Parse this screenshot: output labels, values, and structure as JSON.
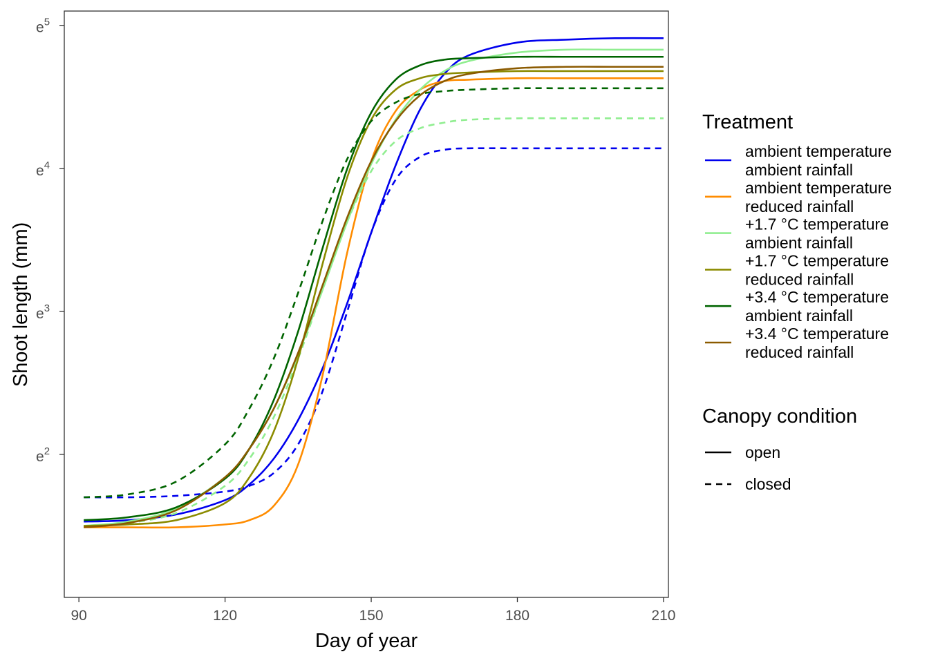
{
  "chart_data": {
    "type": "line",
    "title": "",
    "xlabel": "Day of year",
    "ylabel": "Shoot length (mm)",
    "xlim": [
      87,
      211
    ],
    "x_ticks": [
      90,
      120,
      150,
      180,
      210
    ],
    "x_tick_labels": [
      "90",
      "120",
      "150",
      "180",
      "210"
    ],
    "y_scale": "log",
    "ylim": [
      1.0,
      5.1
    ],
    "y_ticks": [
      2,
      3,
      4,
      5
    ],
    "y_tick_labels": [
      {
        "base": "e",
        "exp": "2"
      },
      {
        "base": "e",
        "exp": "3"
      },
      {
        "base": "e",
        "exp": "4"
      },
      {
        "base": "e",
        "exp": "5"
      }
    ],
    "grid": false,
    "legend_position": "right",
    "legend": {
      "treatment_title": "Treatment",
      "treatment_entries": [
        {
          "line1": "ambient temperature",
          "line2": "ambient rainfall",
          "color": "#0000EE"
        },
        {
          "line1": "ambient temperature",
          "line2": "reduced rainfall",
          "color": "#FF8C00"
        },
        {
          "line1": "+1.7 °C temperature",
          "line2": "ambient rainfall",
          "color": "#90EE90"
        },
        {
          "line1": "+1.7 °C temperature",
          "line2": "reduced rainfall",
          "color": "#8B8B00"
        },
        {
          "line1": "+3.4 °C temperature",
          "line2": "ambient rainfall",
          "color": "#006400"
        },
        {
          "line1": "+3.4 °C temperature",
          "line2": "reduced rainfall",
          "color": "#8B5A00"
        }
      ],
      "canopy_title": "Canopy condition",
      "canopy_entries": [
        {
          "label": "open",
          "dash": "solid"
        },
        {
          "label": "closed",
          "dash": "dashed"
        }
      ]
    },
    "series": [
      {
        "treatment": "ambient temperature / ambient rainfall",
        "canopy": "open",
        "color": "#0000EE",
        "dash": "solid",
        "x": [
          91,
          100,
          110,
          120,
          125,
          130,
          135,
          140,
          145,
          150,
          155,
          160,
          165,
          170,
          180,
          190,
          200,
          210
        ],
        "y": [
          1.53,
          1.54,
          1.58,
          1.68,
          1.79,
          1.97,
          2.24,
          2.6,
          3.05,
          3.55,
          4.02,
          4.41,
          4.66,
          4.79,
          4.88,
          4.9,
          4.91,
          4.91
        ]
      },
      {
        "treatment": "ambient temperature / ambient rainfall",
        "canopy": "closed",
        "color": "#0000EE",
        "dash": "dashed",
        "x": [
          91,
          100,
          110,
          120,
          125,
          130,
          135,
          140,
          145,
          150,
          155,
          160,
          165,
          170,
          180,
          190,
          200,
          210
        ],
        "y": [
          1.7,
          1.7,
          1.71,
          1.74,
          1.78,
          1.87,
          2.07,
          2.44,
          2.99,
          3.55,
          3.92,
          4.08,
          4.13,
          4.14,
          4.14,
          4.14,
          4.14,
          4.14
        ]
      },
      {
        "treatment": "ambient temperature / reduced rainfall",
        "canopy": "open",
        "color": "#FF8C00",
        "dash": "solid",
        "x": [
          91,
          100,
          110,
          120,
          125,
          130,
          135,
          140,
          145,
          150,
          155,
          160,
          165,
          170,
          180,
          190,
          200,
          210
        ],
        "y": [
          1.49,
          1.49,
          1.49,
          1.51,
          1.54,
          1.64,
          1.93,
          2.55,
          3.4,
          4.05,
          4.4,
          4.55,
          4.61,
          4.62,
          4.63,
          4.63,
          4.63,
          4.63
        ]
      },
      {
        "treatment": "+1.7 °C temperature / ambient rainfall",
        "canopy": "open",
        "color": "#90EE90",
        "dash": "solid",
        "x": [
          91,
          100,
          110,
          120,
          125,
          130,
          135,
          140,
          145,
          150,
          155,
          160,
          165,
          170,
          180,
          190,
          200,
          210
        ],
        "y": [
          1.5,
          1.53,
          1.62,
          1.84,
          2.04,
          2.32,
          2.7,
          3.15,
          3.62,
          4.03,
          4.34,
          4.55,
          4.68,
          4.75,
          4.81,
          4.83,
          4.83,
          4.83
        ]
      },
      {
        "treatment": "+1.7 °C temperature / ambient rainfall",
        "canopy": "closed",
        "color": "#90EE90",
        "dash": "dashed",
        "x": [
          91,
          100,
          110,
          120,
          125,
          130,
          135,
          140,
          145,
          150,
          155,
          160,
          165,
          170,
          180,
          190,
          200,
          210
        ],
        "y": [
          1.5,
          1.52,
          1.59,
          1.78,
          1.97,
          2.26,
          2.67,
          3.15,
          3.62,
          3.98,
          4.19,
          4.28,
          4.32,
          4.34,
          4.35,
          4.35,
          4.35,
          4.35
        ]
      },
      {
        "treatment": "+1.7 °C temperature / reduced rainfall",
        "canopy": "open",
        "color": "#8B8B00",
        "dash": "solid",
        "x": [
          91,
          100,
          110,
          120,
          125,
          130,
          135,
          140,
          145,
          150,
          155,
          160,
          165,
          170,
          180,
          190,
          200,
          210
        ],
        "y": [
          1.5,
          1.51,
          1.54,
          1.66,
          1.84,
          2.16,
          2.67,
          3.33,
          3.93,
          4.34,
          4.55,
          4.63,
          4.66,
          4.67,
          4.68,
          4.68,
          4.68,
          4.68
        ]
      },
      {
        "treatment": "+3.4 °C temperature / ambient rainfall",
        "canopy": "open",
        "color": "#006400",
        "dash": "solid",
        "x": [
          91,
          100,
          110,
          120,
          125,
          130,
          135,
          140,
          145,
          150,
          155,
          160,
          165,
          170,
          180,
          190,
          200,
          210
        ],
        "y": [
          1.54,
          1.56,
          1.63,
          1.83,
          2.04,
          2.38,
          2.86,
          3.44,
          3.99,
          4.39,
          4.62,
          4.72,
          4.76,
          4.77,
          4.78,
          4.78,
          4.78,
          4.78
        ]
      },
      {
        "treatment": "+3.4 °C temperature / ambient rainfall",
        "canopy": "closed",
        "color": "#006400",
        "dash": "dashed",
        "x": [
          91,
          100,
          110,
          120,
          125,
          130,
          135,
          140,
          145,
          150,
          155,
          160,
          165,
          170,
          180,
          190,
          200,
          210
        ],
        "y": [
          1.7,
          1.72,
          1.81,
          2.07,
          2.32,
          2.67,
          3.13,
          3.63,
          4.06,
          4.33,
          4.46,
          4.52,
          4.54,
          4.55,
          4.56,
          4.56,
          4.56,
          4.56
        ]
      },
      {
        "treatment": "+3.4 °C temperature / reduced rainfall",
        "canopy": "open",
        "color": "#8B5A00",
        "dash": "solid",
        "x": [
          91,
          100,
          110,
          120,
          125,
          130,
          135,
          140,
          145,
          150,
          155,
          160,
          165,
          170,
          180,
          190,
          200,
          210
        ],
        "y": [
          1.49,
          1.52,
          1.61,
          1.84,
          2.04,
          2.32,
          2.71,
          3.18,
          3.65,
          4.05,
          4.33,
          4.51,
          4.61,
          4.66,
          4.7,
          4.71,
          4.71,
          4.71
        ]
      }
    ]
  }
}
